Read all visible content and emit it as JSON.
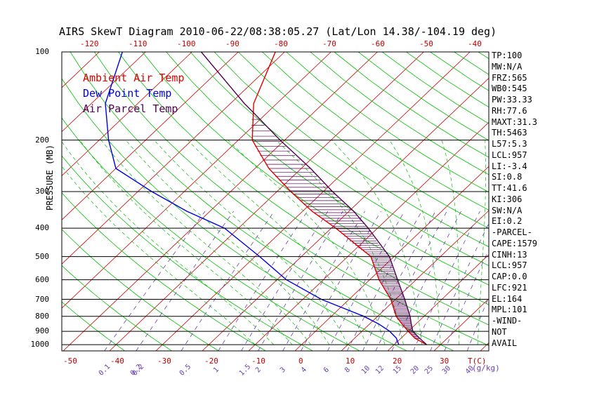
{
  "title": "AIRS SkewT Diagram 2010-06-22/08:38:05.27 (Lat/Lon 14.38/-104.19 deg)",
  "legend": [
    {
      "label": "Ambient Air Temp",
      "color": "#e00000"
    },
    {
      "label": "Dew Point Temp",
      "color": "#0000e0"
    },
    {
      "label": "Air Parcel Temp",
      "color": "#500050"
    }
  ],
  "ylabel": "PRESSURE (MB)",
  "indices": [
    "TP:100",
    "MW:N/A",
    "FRZ:565",
    "WB0:545",
    "PW:33.33",
    "RH:77.6",
    "MAXT:31.3",
    "TH:5463",
    "L57:5.3",
    "LCL:957",
    "LI:-3.4",
    "SI:0.8",
    "TT:41.6",
    "KI:306",
    "SW:N/A",
    "EI:0.2",
    "-PARCEL-",
    "CAPE:1579",
    "CINH:13",
    "LCL:957",
    "CAP:0.0",
    "LFC:921",
    "EL:164",
    "MPL:101",
    "-WIND-",
    "NOT",
    "AVAIL"
  ],
  "chart_data": {
    "type": "line",
    "title": "AIRS SkewT Diagram 2010-06-22/08:38:05.27 (Lat/Lon 14.38/-104.19 deg)",
    "ylabel": "PRESSURE (MB)",
    "pressure_ticks": [
      "100",
      "200",
      "300",
      "400",
      "500",
      "600",
      "700",
      "800",
      "900",
      "1000"
    ],
    "pressure_values": [
      100,
      200,
      300,
      400,
      500,
      600,
      700,
      800,
      900,
      1000
    ],
    "ylim": [
      100,
      1050
    ],
    "top_temp_ticks": [
      "-120",
      "-110",
      "-100",
      "-90",
      "-80",
      "-70",
      "-60",
      "-50",
      "-40"
    ],
    "bottom_temp_ticks": [
      "-50",
      "-40",
      "-30",
      "-20",
      "-10",
      "0",
      "10",
      "20",
      "30"
    ],
    "bottom_temp_label": "T(C)",
    "mixing_ratio_ticks": [
      "0.1",
      "0.2",
      "0.2",
      "0.5",
      "1",
      "1.5",
      "2",
      "3",
      "4",
      "6",
      "8",
      "10",
      "12",
      "15",
      "20",
      "25",
      "30",
      "40"
    ],
    "mixing_ratio_label": "(g/kg)",
    "series": [
      {
        "name": "Ambient Air Temp",
        "color": "#e00000",
        "p": [
          100,
          150,
          200,
          250,
          300,
          350,
          400,
          500,
          600,
          700,
          800,
          850,
          900,
          950,
          1000
        ],
        "t": [
          -72,
          -65,
          -57,
          -47,
          -37,
          -28,
          -19,
          -5,
          2,
          9,
          14,
          17,
          20,
          23,
          27
        ]
      },
      {
        "name": "Dew Point Temp",
        "color": "#0000e0",
        "p": [
          100,
          150,
          200,
          250,
          300,
          350,
          400,
          500,
          600,
          700,
          800,
          850,
          900,
          950,
          1000
        ],
        "t": [
          -105,
          -97,
          -88,
          -80,
          -67,
          -55,
          -43,
          -29,
          -18,
          -6,
          7,
          12,
          16,
          19,
          21
        ]
      },
      {
        "name": "Air Parcel Temp",
        "color": "#500050",
        "p": [
          100,
          150,
          164,
          200,
          250,
          300,
          350,
          400,
          500,
          600,
          700,
          800,
          850,
          900,
          950,
          1000
        ],
        "t": [
          -88,
          -67,
          -62,
          -51,
          -38,
          -28,
          -19,
          -12,
          -1,
          6,
          12,
          17,
          19,
          21,
          24,
          27
        ]
      }
    ]
  }
}
